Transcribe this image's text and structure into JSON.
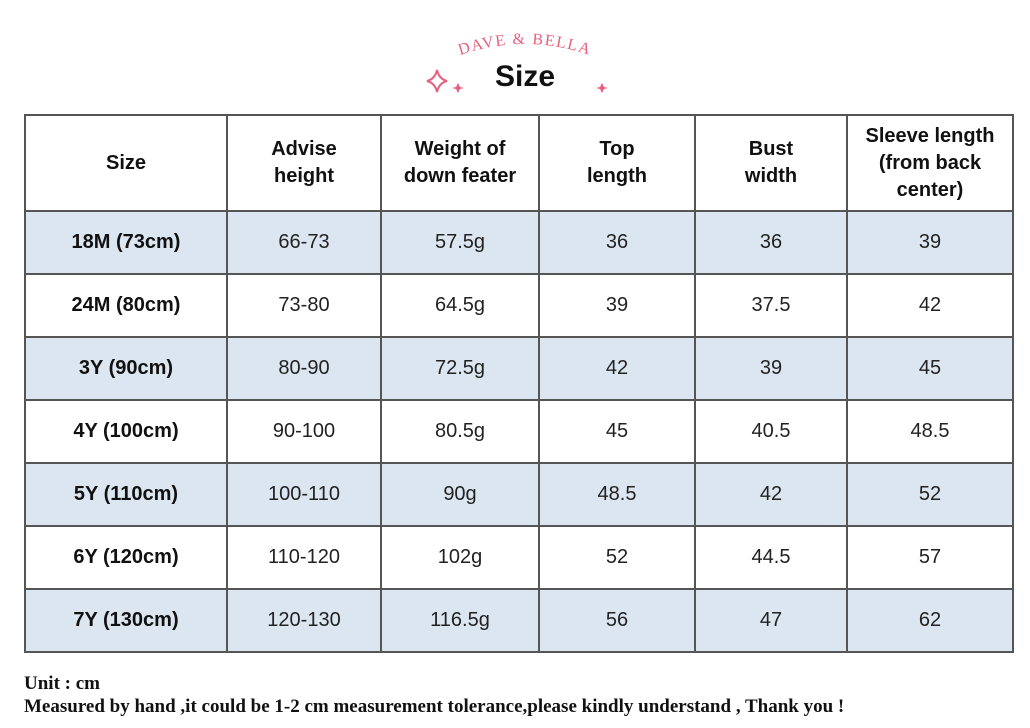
{
  "brand": {
    "logo_text": "DAVE & BELLA",
    "accent_color": "#e8607e"
  },
  "title": "Size",
  "table": {
    "headers": [
      [
        "Size"
      ],
      [
        "Advise",
        "height"
      ],
      [
        "Weight of",
        "down feater"
      ],
      [
        "Top",
        "length"
      ],
      [
        "Bust",
        "width"
      ],
      [
        "Sleeve length",
        "(from back",
        "center)"
      ]
    ],
    "rows": [
      [
        "18M (73cm)",
        "66-73",
        "57.5g",
        "36",
        "36",
        "39"
      ],
      [
        "24M (80cm)",
        "73-80",
        "64.5g",
        "39",
        "37.5",
        "42"
      ],
      [
        "3Y (90cm)",
        "80-90",
        "72.5g",
        "42",
        "39",
        "45"
      ],
      [
        "4Y (100cm)",
        "90-100",
        "80.5g",
        "45",
        "40.5",
        "48.5"
      ],
      [
        "5Y (110cm)",
        "100-110",
        "90g",
        "48.5",
        "42",
        "52"
      ],
      [
        "6Y (120cm)",
        "110-120",
        "102g",
        "52",
        "44.5",
        "57"
      ],
      [
        "7Y (130cm)",
        "120-130",
        "116.5g",
        "56",
        "47",
        "62"
      ]
    ],
    "shaded_row_color": "#dbe6f1"
  },
  "notes": {
    "unit": "Unit : cm",
    "tolerance": "Measured by hand ,it could be 1-2 cm measurement tolerance,please kindly understand , Thank you !"
  }
}
